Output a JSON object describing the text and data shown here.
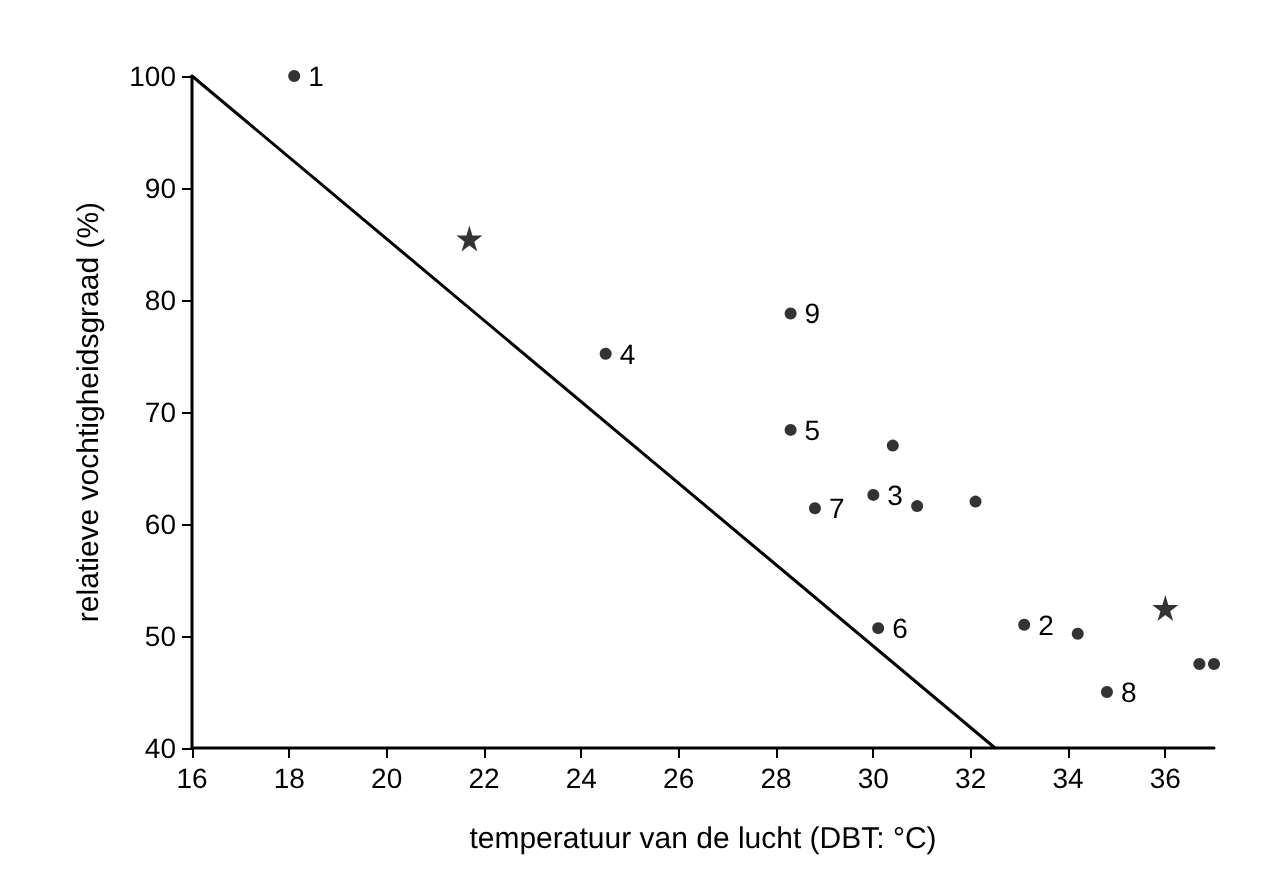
{
  "chart_data": {
    "type": "scatter",
    "xlabel": "temperatuur van de lucht (DBT: °C)",
    "ylabel": "relatieve vochtigheidsgraad (%)",
    "xlim": [
      16,
      37
    ],
    "xticks": [
      16,
      18,
      20,
      22,
      24,
      26,
      28,
      30,
      32,
      34,
      36
    ],
    "ylim": [
      40,
      100
    ],
    "yticks": [
      40,
      50,
      60,
      70,
      80,
      90,
      100
    ],
    "grid": false,
    "annotations": [
      {
        "text": "1",
        "x": 18.1,
        "y": 100
      },
      {
        "text": "2",
        "x": 33.1,
        "y": 51
      },
      {
        "text": "3",
        "x": 30,
        "y": 62.6
      },
      {
        "text": "4",
        "x": 24.5,
        "y": 75.2
      },
      {
        "text": "5",
        "x": 28.3,
        "y": 68.4
      },
      {
        "text": "6",
        "x": 30.1,
        "y": 50.7
      },
      {
        "text": "7",
        "x": 28.8,
        "y": 61.4
      },
      {
        "text": "8",
        "x": 34.8,
        "y": 45
      },
      {
        "text": "9",
        "x": 28.3,
        "y": 78.8
      }
    ],
    "series": [
      {
        "marker": "circle",
        "color": "#000000",
        "x": [
          18.1,
          33.1,
          30,
          24.5,
          28.3,
          30.1,
          28.8,
          34.8,
          28.3
        ],
        "values": [
          100,
          51,
          62.6,
          75.2,
          68.4,
          50.7,
          61.4,
          45,
          78.8
        ]
      },
      {
        "marker": "star",
        "color": "#000000",
        "x": [
          21.7,
          36
        ],
        "values": [
          85.5,
          52.5
        ]
      },
      {
        "marker": "circle",
        "color": "#000000",
        "x": [
          30.4,
          30.9,
          32.1,
          34.2,
          36.7,
          37
        ],
        "values": [
          67,
          61.6,
          62,
          50.2,
          47.5,
          47.5
        ]
      },
      {
        "type": "line",
        "marker": "none",
        "line_style": "solid",
        "color": "#000000",
        "x": [
          16,
          32.5
        ],
        "values": [
          100,
          40
        ]
      }
    ]
  }
}
